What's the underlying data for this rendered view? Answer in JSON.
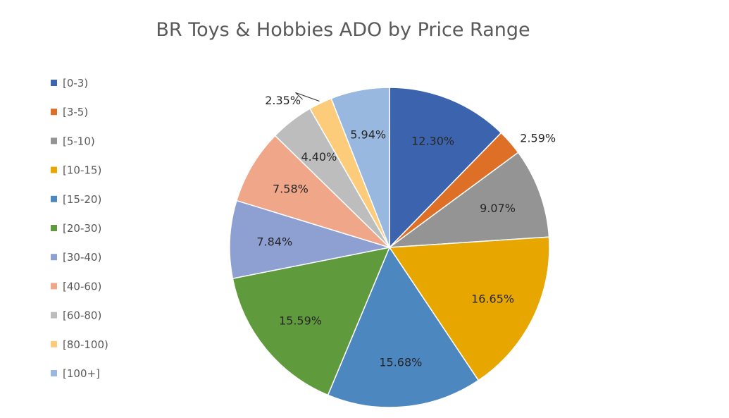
{
  "chart_data": {
    "type": "pie",
    "title": "BR Toys & Hobbies ADO by Price Range",
    "legend_position": "left",
    "categories": [
      "[0-3)",
      "[3-5)",
      "[5-10)",
      "[10-15)",
      "[15-20)",
      "[20-30)",
      "[30-40)",
      "[40-60)",
      "[60-80)",
      "[80-100)",
      "[100+]"
    ],
    "values": [
      12.3,
      2.59,
      9.07,
      16.65,
      15.68,
      15.59,
      7.84,
      7.58,
      4.4,
      2.35,
      5.94
    ],
    "labels": [
      "12.30%",
      "2.59%",
      "9.07%",
      "16.65%",
      "15.68%",
      "15.59%",
      "7.84%",
      "7.58%",
      "4.40%",
      "2.35%",
      "5.94%"
    ],
    "colors": [
      "#3c64ae",
      "#dd6f27",
      "#949494",
      "#e8a600",
      "#4d87c0",
      "#5f9a3c",
      "#8e9fd2",
      "#f0a688",
      "#bdbdbd",
      "#fdcc7b",
      "#98b8e0"
    ]
  }
}
